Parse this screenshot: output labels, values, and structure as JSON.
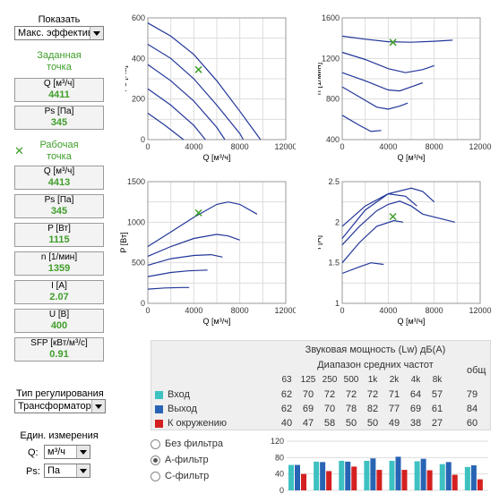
{
  "show": {
    "label": "Показать",
    "value": "Макс. эффективн"
  },
  "setpoint": {
    "title1": "Заданная",
    "title2": "точка",
    "q_label": "Q [м³/ч]",
    "q_value": "4411",
    "ps_label": "Ps [Па]",
    "ps_value": "345"
  },
  "working": {
    "title1": "Рабочая",
    "title2": "точка",
    "items": [
      {
        "label": "Q [м³/ч]",
        "value": "4413"
      },
      {
        "label": "Ps [Па]",
        "value": "345"
      },
      {
        "label": "P [Вт]",
        "value": "1115"
      },
      {
        "label": "n [1/мин]",
        "value": "1359"
      },
      {
        "label": "I [A]",
        "value": "2.07"
      },
      {
        "label": "U [В]",
        "value": "400"
      },
      {
        "label": "SFP [кВт/м³/с]",
        "value": "0.91"
      }
    ]
  },
  "control": {
    "label": "Тип регулирования",
    "value": "Трансформатор"
  },
  "units": {
    "label1": "Един. измерения",
    "q_label": "Q:",
    "q_value": "м³/ч",
    "ps_label": "Ps:",
    "ps_value": "Па"
  },
  "filters": [
    {
      "label": "Без фильтра",
      "selected": false
    },
    {
      "label": "А-фильтр",
      "selected": true
    },
    {
      "label": "С-фильтр",
      "selected": false
    }
  ],
  "sound": {
    "title": "Звуковая мощность (Lw) дБ(A)",
    "subtitle": "Диапазон средних частот",
    "freqs": [
      "63",
      "125",
      "250",
      "500",
      "1k",
      "2k",
      "4k",
      "8k"
    ],
    "total_label": "общ",
    "rows": [
      {
        "label": "Вход",
        "color": "#3ec1c1",
        "values": [
          "62",
          "70",
          "72",
          "72",
          "72",
          "71",
          "64",
          "57"
        ],
        "total": "79"
      },
      {
        "label": "Выход",
        "color": "#2864b4",
        "values": [
          "62",
          "69",
          "70",
          "78",
          "82",
          "77",
          "69",
          "61"
        ],
        "total": "84"
      },
      {
        "label": "К окружению",
        "color": "#d42020",
        "values": [
          "40",
          "47",
          "58",
          "50",
          "50",
          "49",
          "38",
          "27"
        ],
        "total": "60"
      }
    ]
  },
  "charts": {
    "ps": {
      "ylabel": "Ps [Па]",
      "xlabel": "Q [м³/ч]",
      "xticks": [
        "0",
        "4000",
        "8000",
        "12000"
      ],
      "yticks": [
        "0",
        "200",
        "400",
        "600"
      ]
    },
    "n": {
      "ylabel": "n [1/мин]",
      "xlabel": "Q [м³/ч]",
      "xticks": [
        "0",
        "4000",
        "8000",
        "12000"
      ],
      "yticks": [
        "400",
        "800",
        "1200",
        "1600"
      ]
    },
    "p": {
      "ylabel": "P [Вт]",
      "xlabel": "Q [м³/ч]",
      "xticks": [
        "0",
        "4000",
        "8000",
        "12000"
      ],
      "yticks": [
        "0",
        "500",
        "1000",
        "1500"
      ]
    },
    "i": {
      "ylabel": "I [A]",
      "xlabel": "Q [м³/ч]",
      "xticks": [
        "0",
        "4000",
        "8000",
        "12000"
      ],
      "yticks": [
        "1",
        "1.5",
        "2",
        "2.5"
      ]
    },
    "bar": {
      "yticks": [
        "0",
        "40",
        "80",
        "120"
      ]
    }
  },
  "chart_data": [
    {
      "type": "line",
      "name": "ps",
      "xlim": [
        0,
        12000
      ],
      "ylim": [
        0,
        600
      ],
      "series": [
        {
          "points": [
            [
              0,
              575
            ],
            [
              2000,
              510
            ],
            [
              4000,
              420
            ],
            [
              6000,
              290
            ],
            [
              8000,
              140
            ],
            [
              9800,
              0
            ]
          ]
        },
        {
          "points": [
            [
              0,
              470
            ],
            [
              2000,
              400
            ],
            [
              4000,
              300
            ],
            [
              6000,
              170
            ],
            [
              8000,
              30
            ],
            [
              8300,
              0
            ]
          ]
        },
        {
          "points": [
            [
              0,
              370
            ],
            [
              2000,
              290
            ],
            [
              4000,
              190
            ],
            [
              6000,
              60
            ],
            [
              6700,
              0
            ]
          ]
        },
        {
          "points": [
            [
              0,
              250
            ],
            [
              2000,
              170
            ],
            [
              4000,
              70
            ],
            [
              5000,
              0
            ]
          ]
        },
        {
          "points": [
            [
              0,
              130
            ],
            [
              1500,
              70
            ],
            [
              3100,
              0
            ]
          ]
        }
      ],
      "marker": [
        4411,
        345
      ]
    },
    {
      "type": "line",
      "name": "n",
      "xlim": [
        0,
        12000
      ],
      "ylim": [
        400,
        1600
      ],
      "series": [
        {
          "points": [
            [
              0,
              1420
            ],
            [
              2000,
              1390
            ],
            [
              4000,
              1365
            ],
            [
              6000,
              1360
            ],
            [
              8000,
              1370
            ],
            [
              9600,
              1380
            ]
          ]
        },
        {
          "points": [
            [
              0,
              1260
            ],
            [
              2000,
              1190
            ],
            [
              4000,
              1100
            ],
            [
              5500,
              1060
            ],
            [
              7000,
              1090
            ],
            [
              8000,
              1130
            ]
          ]
        },
        {
          "points": [
            [
              0,
              1060
            ],
            [
              2000,
              980
            ],
            [
              4000,
              890
            ],
            [
              5000,
              880
            ],
            [
              6000,
              920
            ],
            [
              7000,
              960
            ]
          ]
        },
        {
          "points": [
            [
              0,
              920
            ],
            [
              1500,
              820
            ],
            [
              3000,
              720
            ],
            [
              4000,
              700
            ],
            [
              5000,
              730
            ],
            [
              5700,
              760
            ]
          ]
        },
        {
          "points": [
            [
              0,
              640
            ],
            [
              1500,
              540
            ],
            [
              2500,
              480
            ],
            [
              3400,
              490
            ]
          ]
        }
      ],
      "marker": [
        4413,
        1359
      ]
    },
    {
      "type": "line",
      "name": "p",
      "xlim": [
        0,
        12000
      ],
      "ylim": [
        0,
        1500
      ],
      "series": [
        {
          "points": [
            [
              0,
              700
            ],
            [
              2000,
              880
            ],
            [
              4000,
              1060
            ],
            [
              6000,
              1220
            ],
            [
              7000,
              1250
            ],
            [
              8000,
              1220
            ],
            [
              9500,
              1100
            ]
          ]
        },
        {
          "points": [
            [
              0,
              580
            ],
            [
              2000,
              700
            ],
            [
              4000,
              800
            ],
            [
              6000,
              850
            ],
            [
              7000,
              830
            ],
            [
              8000,
              780
            ]
          ]
        },
        {
          "points": [
            [
              0,
              470
            ],
            [
              2000,
              550
            ],
            [
              4000,
              590
            ],
            [
              5500,
              600
            ],
            [
              6500,
              570
            ]
          ]
        },
        {
          "points": [
            [
              0,
              330
            ],
            [
              2000,
              380
            ],
            [
              3500,
              400
            ],
            [
              5200,
              410
            ]
          ]
        },
        {
          "points": [
            [
              0,
              175
            ],
            [
              1500,
              190
            ],
            [
              3000,
              195
            ],
            [
              3600,
              195
            ]
          ]
        }
      ],
      "marker": [
        4413,
        1115
      ]
    },
    {
      "type": "line",
      "name": "i",
      "xlim": [
        0,
        12000
      ],
      "ylim": [
        1,
        2.5
      ],
      "series": [
        {
          "points": [
            [
              0,
              1.72
            ],
            [
              1500,
              1.95
            ],
            [
              3000,
              2.14
            ],
            [
              4000,
              2.22
            ],
            [
              5000,
              2.26
            ],
            [
              6000,
              2.2
            ],
            [
              7000,
              2.1
            ],
            [
              9800,
              2.0
            ]
          ]
        },
        {
          "points": [
            [
              0,
              1.95
            ],
            [
              2000,
              2.2
            ],
            [
              4000,
              2.35
            ],
            [
              6000,
              2.42
            ],
            [
              7000,
              2.38
            ],
            [
              8000,
              2.25
            ]
          ]
        },
        {
          "points": [
            [
              0,
              1.8
            ],
            [
              2000,
              2.15
            ],
            [
              4000,
              2.35
            ],
            [
              5500,
              2.32
            ],
            [
              6500,
              2.2
            ]
          ]
        },
        {
          "points": [
            [
              0,
              1.5
            ],
            [
              1500,
              1.75
            ],
            [
              3000,
              1.95
            ],
            [
              4500,
              2.02
            ],
            [
              5300,
              2.0
            ]
          ]
        },
        {
          "points": [
            [
              0,
              1.37
            ],
            [
              1500,
              1.45
            ],
            [
              2500,
              1.5
            ],
            [
              3600,
              1.48
            ]
          ]
        }
      ],
      "marker": [
        4413,
        2.07
      ]
    },
    {
      "type": "bar",
      "name": "sound",
      "categories": [
        "63",
        "125",
        "250",
        "500",
        "1k",
        "2k",
        "4k",
        "8k"
      ],
      "ylim": [
        0,
        120
      ],
      "series": [
        {
          "name": "Вход",
          "values": [
            62,
            70,
            72,
            72,
            72,
            71,
            64,
            57
          ]
        },
        {
          "name": "Выход",
          "values": [
            62,
            69,
            70,
            78,
            82,
            77,
            69,
            61
          ]
        },
        {
          "name": "К окружению",
          "values": [
            40,
            47,
            58,
            50,
            50,
            49,
            38,
            27
          ]
        }
      ],
      "totals": [
        79,
        84,
        60
      ]
    }
  ]
}
